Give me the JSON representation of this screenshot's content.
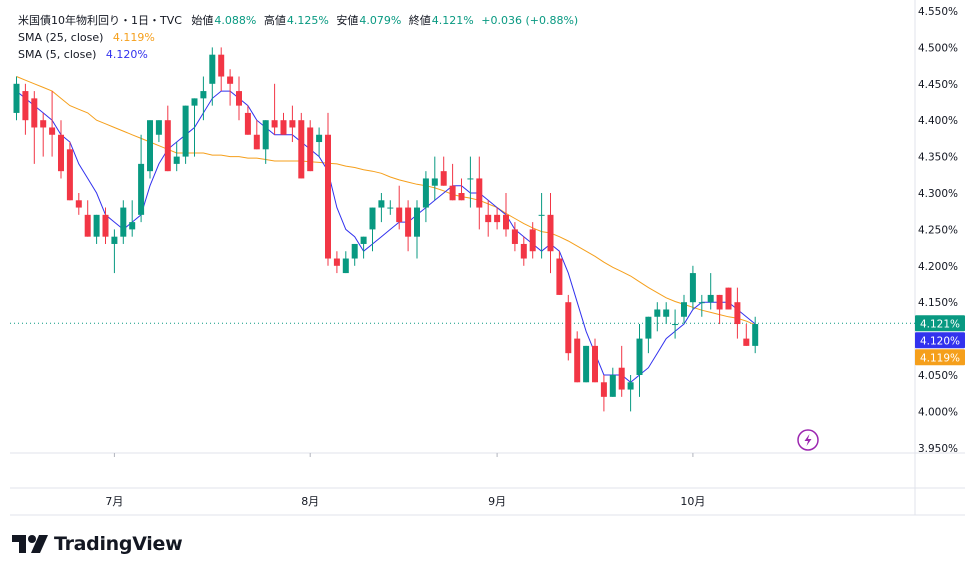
{
  "legend": {
    "symbol": "米国債10年物利回り・1日・TVC",
    "open_label": "始値",
    "open": "4.088%",
    "high_label": "高値",
    "high": "4.125%",
    "low_label": "安値",
    "low": "4.079%",
    "close_label": "終値",
    "close": "4.121%",
    "change": "+0.036 (+0.88%)",
    "sma25_label": "SMA (25, close)",
    "sma25_value": "4.119%",
    "sma5_label": "SMA (5, close)",
    "sma5_value": "4.120%"
  },
  "brand": {
    "name": "TradingView"
  },
  "colors": {
    "up": "#089981",
    "down": "#f23645",
    "sma25": "#f59f1b",
    "sma5": "#3232ee"
  },
  "chart_data": {
    "type": "candlestick",
    "y_ticks": [
      "4.550%",
      "4.500%",
      "4.450%",
      "4.400%",
      "4.350%",
      "4.300%",
      "4.250%",
      "4.200%",
      "4.150%",
      "4.100%",
      "4.050%",
      "4.000%",
      "3.950%"
    ],
    "ylim": [
      3.94,
      4.56
    ],
    "x_ticks": [
      {
        "label": "7月",
        "index": 11
      },
      {
        "label": "8月",
        "index": 33
      },
      {
        "label": "9月",
        "index": 54
      },
      {
        "label": "10月",
        "index": 76
      }
    ],
    "price_labels": [
      {
        "text": "4.121%",
        "value": 4.121,
        "color": "#089981"
      },
      {
        "text": "4.120%",
        "value": 4.12,
        "color": "#3232ee"
      },
      {
        "text": "4.119%",
        "value": 4.119,
        "color": "#f59f1b"
      }
    ],
    "last_price": 4.121,
    "candles": [
      [
        4.41,
        4.46,
        4.4,
        4.45
      ],
      [
        4.44,
        4.45,
        4.38,
        4.4
      ],
      [
        4.43,
        4.44,
        4.34,
        4.39
      ],
      [
        4.4,
        4.41,
        4.35,
        4.39
      ],
      [
        4.39,
        4.44,
        4.35,
        4.38
      ],
      [
        4.38,
        4.4,
        4.32,
        4.33
      ],
      [
        4.36,
        4.37,
        4.29,
        4.29
      ],
      [
        4.29,
        4.3,
        4.27,
        4.28
      ],
      [
        4.27,
        4.29,
        4.24,
        4.24
      ],
      [
        4.24,
        4.27,
        4.23,
        4.27
      ],
      [
        4.27,
        4.28,
        4.23,
        4.24
      ],
      [
        4.23,
        4.25,
        4.19,
        4.24
      ],
      [
        4.24,
        4.29,
        4.23,
        4.28
      ],
      [
        4.25,
        4.29,
        4.24,
        4.26
      ],
      [
        4.27,
        4.38,
        4.26,
        4.34
      ],
      [
        4.33,
        4.4,
        4.32,
        4.4
      ],
      [
        4.38,
        4.4,
        4.37,
        4.4
      ],
      [
        4.4,
        4.42,
        4.33,
        4.33
      ],
      [
        4.34,
        4.37,
        4.33,
        4.35
      ],
      [
        4.35,
        4.42,
        4.34,
        4.42
      ],
      [
        4.42,
        4.43,
        4.35,
        4.43
      ],
      [
        4.43,
        4.46,
        4.4,
        4.44
      ],
      [
        4.45,
        4.5,
        4.42,
        4.49
      ],
      [
        4.49,
        4.5,
        4.44,
        4.46
      ],
      [
        4.46,
        4.47,
        4.42,
        4.45
      ],
      [
        4.44,
        4.46,
        4.4,
        4.42
      ],
      [
        4.41,
        4.42,
        4.38,
        4.38
      ],
      [
        4.38,
        4.4,
        4.36,
        4.36
      ],
      [
        4.36,
        4.4,
        4.34,
        4.4
      ],
      [
        4.4,
        4.45,
        4.38,
        4.39
      ],
      [
        4.4,
        4.41,
        4.38,
        4.38
      ],
      [
        4.4,
        4.42,
        4.37,
        4.39
      ],
      [
        4.4,
        4.41,
        4.32,
        4.32
      ],
      [
        4.39,
        4.4,
        4.33,
        4.33
      ],
      [
        4.37,
        4.39,
        4.35,
        4.38
      ],
      [
        4.38,
        4.41,
        4.2,
        4.21
      ],
      [
        4.21,
        4.22,
        4.19,
        4.2
      ],
      [
        4.19,
        4.22,
        4.19,
        4.21
      ],
      [
        4.21,
        4.23,
        4.2,
        4.23
      ],
      [
        4.23,
        4.24,
        4.21,
        4.24
      ],
      [
        4.25,
        4.28,
        4.22,
        4.28
      ],
      [
        4.28,
        4.3,
        4.26,
        4.29
      ],
      [
        4.28,
        4.29,
        4.27,
        4.28
      ],
      [
        4.28,
        4.31,
        4.25,
        4.26
      ],
      [
        4.28,
        4.29,
        4.22,
        4.24
      ],
      [
        4.24,
        4.29,
        4.21,
        4.28
      ],
      [
        4.28,
        4.33,
        4.26,
        4.32
      ],
      [
        4.31,
        4.35,
        4.29,
        4.32
      ],
      [
        4.33,
        4.35,
        4.31,
        4.31
      ],
      [
        4.31,
        4.34,
        4.29,
        4.29
      ],
      [
        4.3,
        4.32,
        4.29,
        4.29
      ],
      [
        4.32,
        4.35,
        4.28,
        4.32
      ],
      [
        4.32,
        4.35,
        4.25,
        4.28
      ],
      [
        4.27,
        4.29,
        4.24,
        4.26
      ],
      [
        4.27,
        4.28,
        4.25,
        4.26
      ],
      [
        4.27,
        4.3,
        4.24,
        4.25
      ],
      [
        4.25,
        4.26,
        4.22,
        4.23
      ],
      [
        4.23,
        4.24,
        4.2,
        4.21
      ],
      [
        4.25,
        4.26,
        4.21,
        4.22
      ],
      [
        4.27,
        4.3,
        4.21,
        4.27
      ],
      [
        4.27,
        4.3,
        4.19,
        4.22
      ],
      [
        4.21,
        4.22,
        4.16,
        4.16
      ],
      [
        4.15,
        4.16,
        4.07,
        4.08
      ],
      [
        4.1,
        4.11,
        4.04,
        4.04
      ],
      [
        4.04,
        4.09,
        4.04,
        4.09
      ],
      [
        4.09,
        4.1,
        4.04,
        4.04
      ],
      [
        4.04,
        4.05,
        4.0,
        4.02
      ],
      [
        4.02,
        4.06,
        4.02,
        4.05
      ],
      [
        4.06,
        4.09,
        4.02,
        4.03
      ],
      [
        4.03,
        4.05,
        4.0,
        4.04
      ],
      [
        4.05,
        4.12,
        4.02,
        4.1
      ],
      [
        4.1,
        4.13,
        4.08,
        4.13
      ],
      [
        4.13,
        4.15,
        4.11,
        4.14
      ],
      [
        4.13,
        4.15,
        4.12,
        4.14
      ],
      [
        4.12,
        4.14,
        4.1,
        4.12
      ],
      [
        4.13,
        4.16,
        4.12,
        4.15
      ],
      [
        4.15,
        4.2,
        4.14,
        4.19
      ],
      [
        4.15,
        4.16,
        4.13,
        4.15
      ],
      [
        4.15,
        4.19,
        4.14,
        4.16
      ],
      [
        4.16,
        4.16,
        4.12,
        4.14
      ],
      [
        4.17,
        4.17,
        4.14,
        4.14
      ],
      [
        4.15,
        4.17,
        4.1,
        4.12
      ],
      [
        4.1,
        4.12,
        4.09,
        4.09
      ],
      [
        4.09,
        4.13,
        4.08,
        4.12
      ]
    ],
    "sma25": [
      4.46,
      4.455,
      4.45,
      4.445,
      4.44,
      4.43,
      4.42,
      4.415,
      4.41,
      4.4,
      4.395,
      4.39,
      4.385,
      4.38,
      4.375,
      4.37,
      4.365,
      4.36,
      4.355,
      4.355,
      4.355,
      4.355,
      4.352,
      4.352,
      4.35,
      4.35,
      4.348,
      4.348,
      4.346,
      4.344,
      4.344,
      4.344,
      4.344,
      4.343,
      4.342,
      4.341,
      4.34,
      4.337,
      4.335,
      4.332,
      4.33,
      4.327,
      4.322,
      4.318,
      4.315,
      4.312,
      4.31,
      4.307,
      4.303,
      4.298,
      4.295,
      4.293,
      4.29,
      4.285,
      4.28,
      4.272,
      4.265,
      4.258,
      4.252,
      4.247,
      4.245,
      4.24,
      4.234,
      4.227,
      4.22,
      4.213,
      4.205,
      4.198,
      4.192,
      4.186,
      4.178,
      4.17,
      4.163,
      4.156,
      4.151,
      4.147,
      4.143,
      4.139,
      4.136,
      4.133,
      4.13,
      4.128,
      4.124,
      4.119
    ],
    "sma5": [
      4.44,
      4.43,
      4.42,
      4.41,
      4.4,
      4.38,
      4.37,
      4.34,
      4.32,
      4.3,
      4.27,
      4.26,
      4.25,
      4.26,
      4.27,
      4.31,
      4.34,
      4.36,
      4.37,
      4.38,
      4.39,
      4.41,
      4.43,
      4.44,
      4.44,
      4.43,
      4.42,
      4.4,
      4.39,
      4.38,
      4.38,
      4.38,
      4.37,
      4.36,
      4.35,
      4.33,
      4.28,
      4.25,
      4.24,
      4.22,
      4.23,
      4.24,
      4.25,
      4.26,
      4.26,
      4.27,
      4.28,
      4.29,
      4.3,
      4.31,
      4.31,
      4.3,
      4.3,
      4.29,
      4.28,
      4.27,
      4.25,
      4.24,
      4.23,
      4.22,
      4.23,
      4.22,
      4.19,
      4.15,
      4.11,
      4.08,
      4.05,
      4.05,
      4.05,
      4.04,
      4.05,
      4.06,
      4.08,
      4.1,
      4.11,
      4.12,
      4.14,
      4.15,
      4.15,
      4.15,
      4.15,
      4.14,
      4.13,
      4.12
    ]
  }
}
